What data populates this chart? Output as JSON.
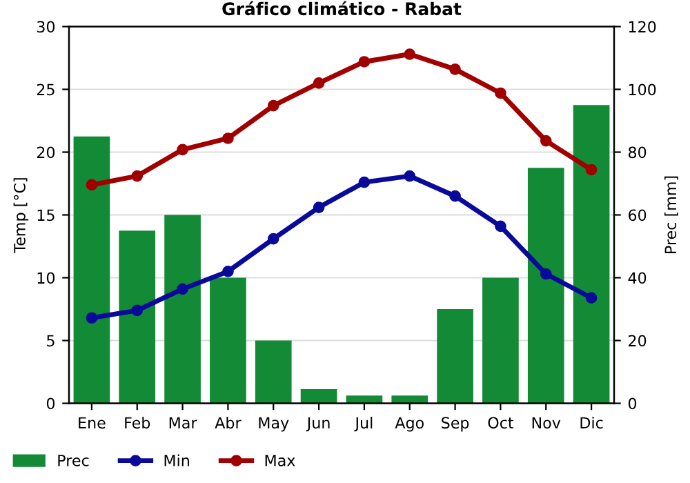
{
  "chart_data": {
    "type": "line",
    "title": "Gráfico climático - Rabat",
    "ylabel": "Temp [°C]",
    "y2label": "Prec [mm]",
    "categories": [
      "Ene",
      "Feb",
      "Mar",
      "Abr",
      "May",
      "Jun",
      "Jul",
      "Ago",
      "Sep",
      "Oct",
      "Nov",
      "Dic"
    ],
    "series": [
      {
        "name": "Prec",
        "type": "bar",
        "axis": "y2",
        "color": "#138a36",
        "values": [
          85,
          55,
          60,
          40,
          20,
          4.5,
          2.5,
          2.5,
          30,
          40,
          75,
          95
        ]
      },
      {
        "name": "Min",
        "color": "#0a0a9a",
        "values": [
          6.8,
          7.4,
          9.1,
          10.5,
          13.1,
          15.6,
          17.6,
          18.1,
          16.5,
          14.1,
          10.3,
          8.4
        ]
      },
      {
        "name": "Max",
        "color": "#a00000",
        "values": [
          17.4,
          18.1,
          20.2,
          21.1,
          23.7,
          25.5,
          27.2,
          27.8,
          26.6,
          24.7,
          20.9,
          18.6
        ]
      }
    ],
    "ylim": [
      0,
      30
    ],
    "yticks": [
      0,
      5,
      10,
      15,
      20,
      25,
      30
    ],
    "y2lim": [
      0,
      120
    ],
    "y2ticks": [
      0,
      20,
      40,
      60,
      80,
      100,
      120
    ],
    "grid": "y",
    "legend": "bottom",
    "marker": "circle",
    "line_style": "solid"
  }
}
